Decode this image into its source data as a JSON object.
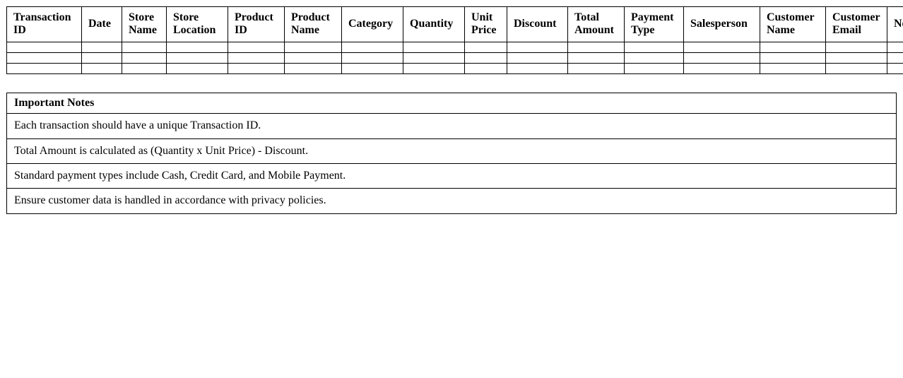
{
  "page": {
    "background_color": "#ffffff",
    "text_color": "#000000",
    "border_color": "#000000"
  },
  "transactions_table": {
    "headers": [
      "Transaction ID",
      "Date",
      "Store Name",
      "Store Location",
      "Product ID",
      "Product Name",
      "Category",
      "Quantity",
      "Unit Price",
      "Discount",
      "Total Amount",
      "Payment Type",
      "Salesperson",
      "Customer Name",
      "Customer Email",
      "Notes"
    ],
    "empty_row_count": 3
  },
  "notes": {
    "title": "Important Notes",
    "items": [
      "Each transaction should have a unique Transaction ID.",
      "Total Amount is calculated as (Quantity x Unit Price) - Discount.",
      "Standard payment types include Cash, Credit Card, and Mobile Payment.",
      "Ensure customer data is handled in accordance with privacy policies."
    ]
  }
}
